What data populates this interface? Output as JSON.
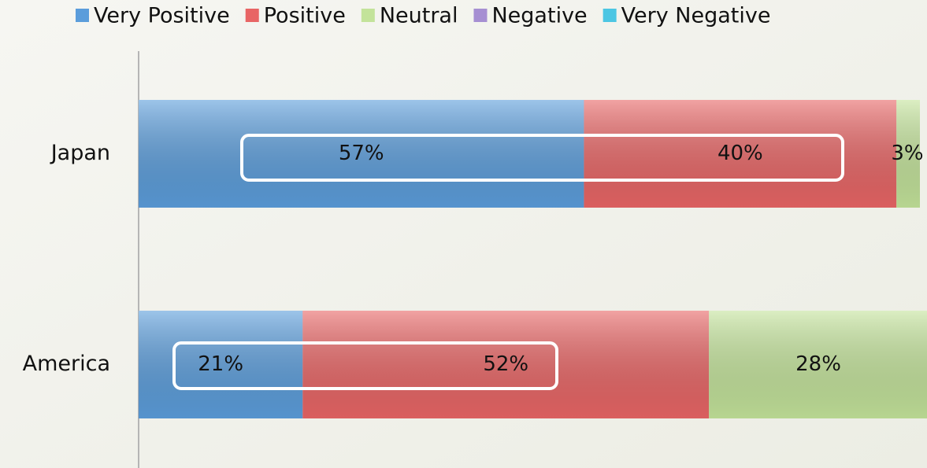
{
  "chart_data": {
    "type": "stacked-barh",
    "categories": [
      "Japan",
      "America"
    ],
    "series": [
      {
        "name": "Very Positive",
        "color": "#5b9ddb",
        "values": [
          57,
          21
        ],
        "value_labels": [
          "57%",
          "21%"
        ]
      },
      {
        "name": "Positive",
        "color": "#e86565",
        "values": [
          40,
          52
        ],
        "value_labels": [
          "40%",
          "52%"
        ]
      },
      {
        "name": "Neutral",
        "color": "#c3e39a",
        "values": [
          3,
          28
        ],
        "value_labels": [
          "3%",
          "28%"
        ]
      },
      {
        "name": "Negative",
        "color": "#a68fd2",
        "values": [
          0,
          0
        ],
        "value_labels": [
          null,
          null
        ]
      },
      {
        "name": "Very Negative",
        "color": "#4cc6e3",
        "values": [
          0,
          0
        ],
        "value_labels": [
          null,
          null
        ]
      }
    ],
    "xlim": [
      0,
      100
    ],
    "legend": "top"
  }
}
